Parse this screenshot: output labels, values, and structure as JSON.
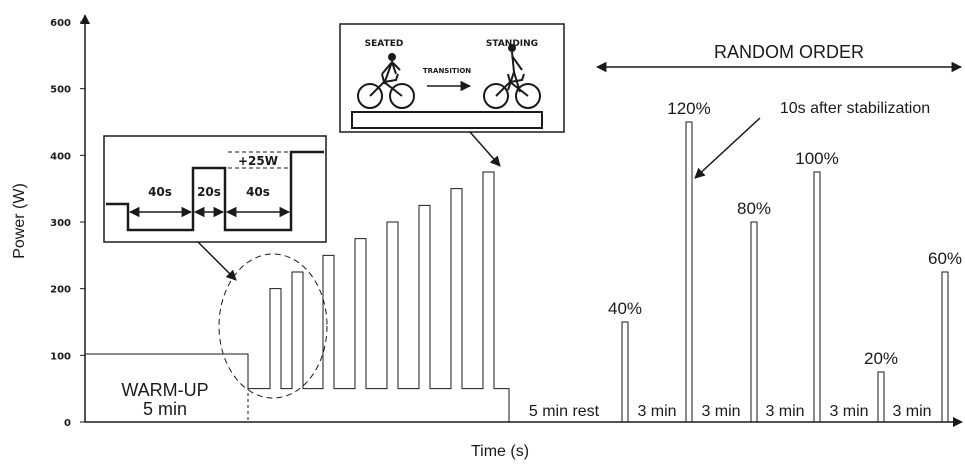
{
  "chart_data": {
    "type": "line",
    "xlabel": "Time (s)",
    "ylabel": "Power (W)",
    "ylim": [
      0,
      600
    ],
    "yticks": [
      "0",
      "100",
      "200",
      "300",
      "400",
      "500",
      "600"
    ],
    "grid": false,
    "warmup": {
      "power": 100,
      "label": "WARM-UP",
      "duration": "5 min"
    },
    "incremental_base_power": 50,
    "incremental_peaks": [
      200,
      225,
      250,
      275,
      300,
      325,
      350,
      375
    ],
    "rest_label": "5 min rest",
    "random_order_label": "RANDOM ORDER",
    "random_sprints": [
      {
        "label": "40%",
        "power": 150
      },
      {
        "label": "120%",
        "power": 450
      },
      {
        "label": "80%",
        "power": 300
      },
      {
        "label": "100%",
        "power": 375
      },
      {
        "label": "20%",
        "power": 75
      },
      {
        "label": "60%",
        "power": 225
      }
    ],
    "interval_labels": [
      "3 min",
      "3 min",
      "3 min",
      "3 min",
      "3 min"
    ],
    "stabilization_note": "10s after stabilization",
    "inset_protocol": {
      "labels": [
        "40s",
        "20s",
        "40s"
      ],
      "increment": "+25W"
    },
    "inset_positions": {
      "seated": "SEATED",
      "transition": "TRANSITION",
      "standing": "STANDING"
    }
  }
}
